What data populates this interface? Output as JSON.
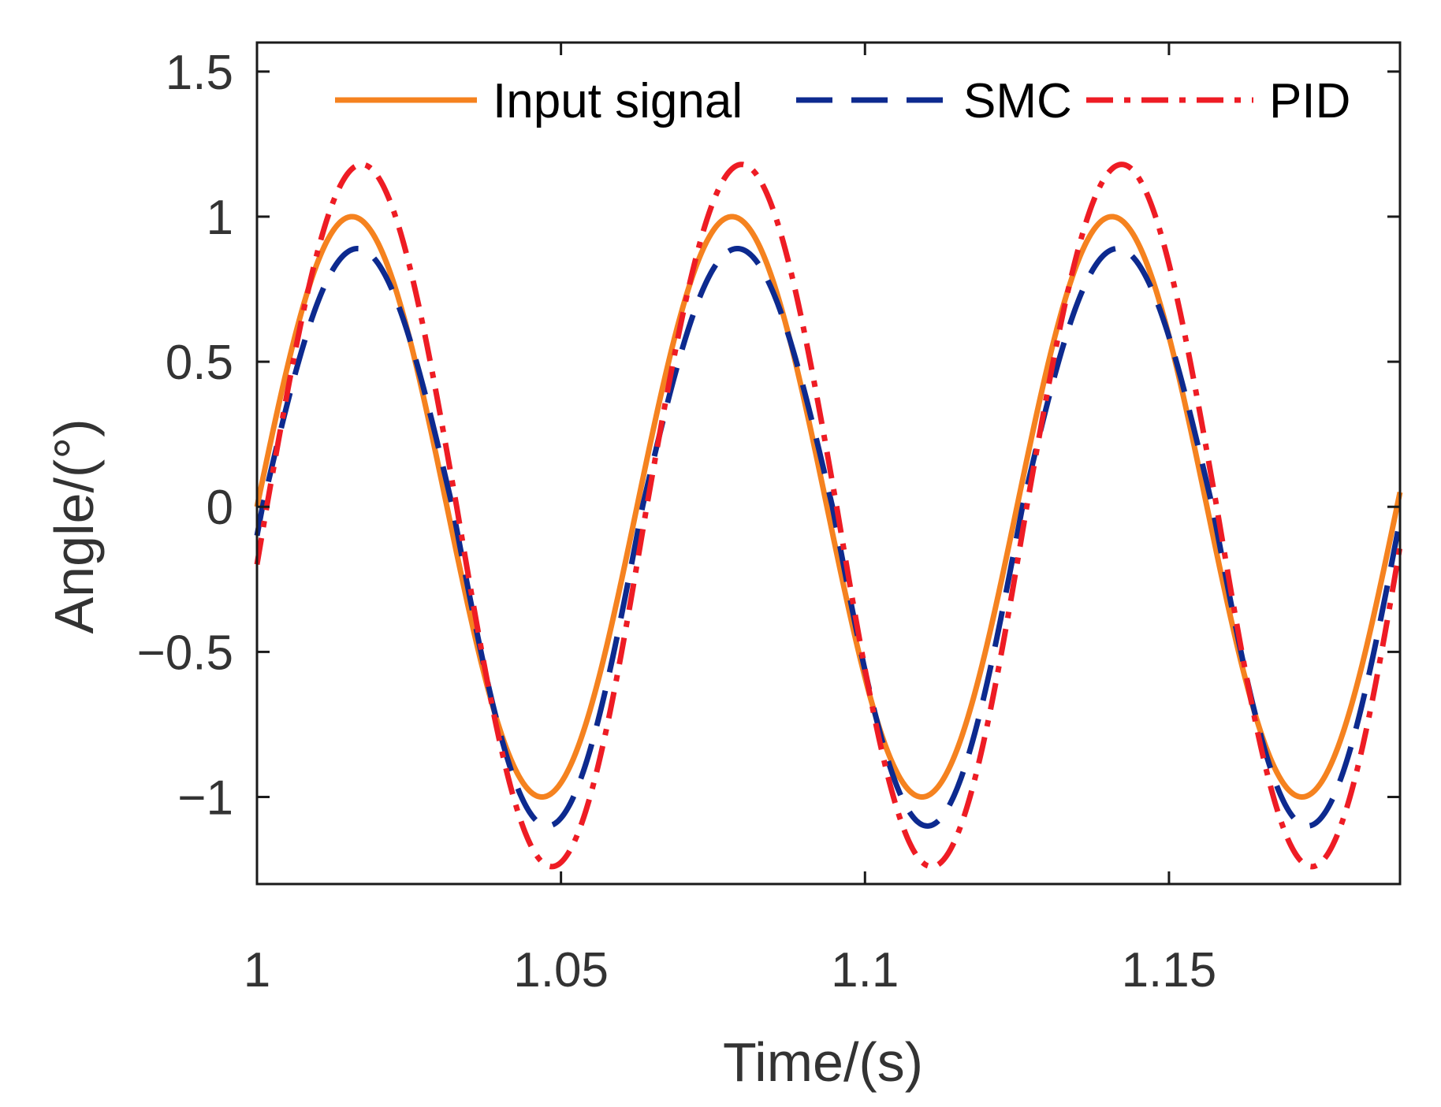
{
  "chart_data": {
    "type": "line",
    "title": "",
    "xlabel": "Time/(s)",
    "ylabel": "Angle/(°)",
    "xlim": [
      1.0,
      1.188
    ],
    "ylim": [
      -1.3,
      1.6
    ],
    "xticks": [
      1.0,
      1.05,
      1.1,
      1.15
    ],
    "xtick_labels": [
      "1",
      "1.05",
      "1.1",
      "1.15"
    ],
    "yticks": [
      -1.0,
      -0.5,
      0,
      0.5,
      1.0,
      1.5
    ],
    "ytick_labels": [
      "−1",
      "−0.5",
      "0",
      "0.5",
      "1",
      "1.5"
    ],
    "grid": false,
    "legend_position": "top",
    "frequency_hz": 16,
    "series": [
      {
        "name": "Input signal",
        "style": "solid",
        "color": "#f5821f",
        "amplitude": 1.0,
        "amplitude_neg": 1.0,
        "phase_lag_s": 0.0
      },
      {
        "name": "SMC",
        "style": "dashed",
        "color": "#0d2a8f",
        "amplitude": 0.89,
        "amplitude_neg": 1.1,
        "phase_lag_s": 0.0009
      },
      {
        "name": "PID",
        "style": "dashdot",
        "color": "#ee1c24",
        "amplitude": 1.18,
        "amplitude_neg": 1.24,
        "phase_lag_s": 0.0016
      }
    ]
  }
}
